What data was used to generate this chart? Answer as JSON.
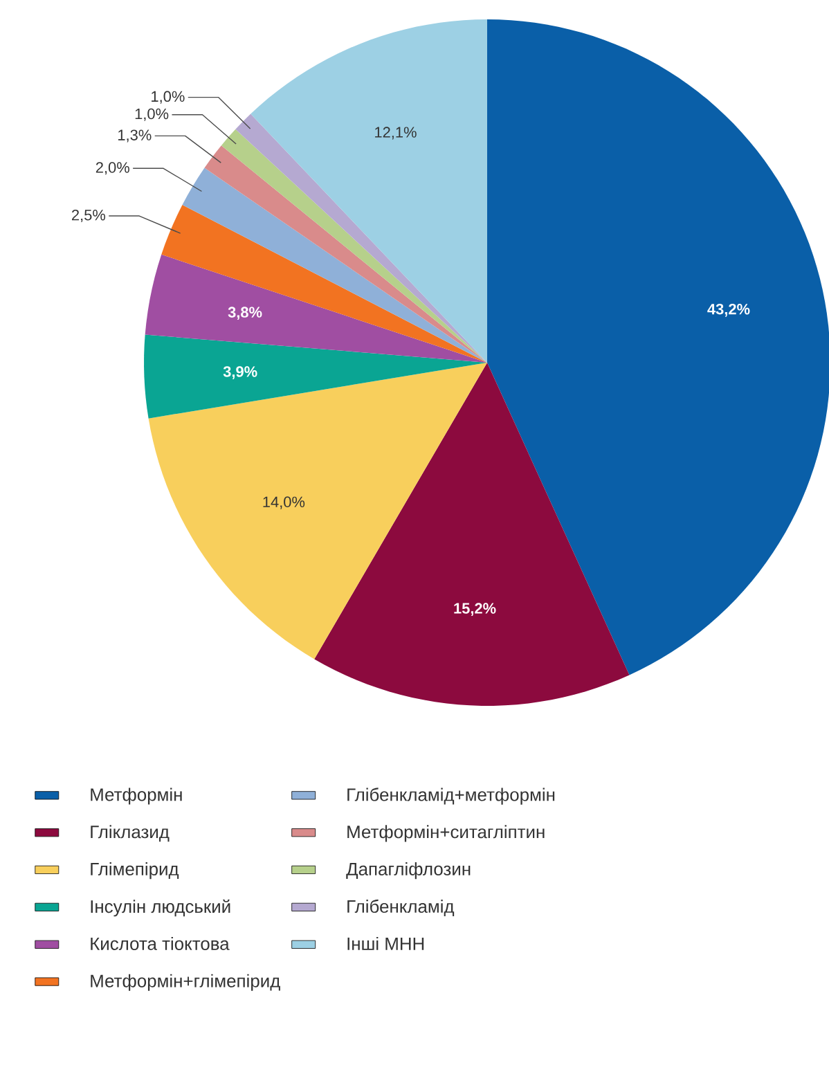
{
  "chart_data": {
    "type": "pie",
    "categories": [
      "Метформін",
      "Гліклазид",
      "Глімепірид",
      "Інсулін людський",
      "Кислота тіоктова",
      "Метформін+глімепірид",
      "Глібенкламід+метформін",
      "Метформін+ситагліптин",
      "Дапагліфлозин",
      "Глібенкламід",
      "Інші МНН"
    ],
    "values": [
      43.2,
      15.2,
      14.0,
      3.9,
      3.8,
      2.5,
      2.0,
      1.3,
      1.0,
      1.0,
      12.1
    ],
    "colors": [
      "#0a5fa8",
      "#8c0a3e",
      "#f8cf5c",
      "#0aa593",
      "#a04ea2",
      "#f27321",
      "#8fb0d8",
      "#d98b8b",
      "#b6d08b",
      "#b5a9d1",
      "#9dd0e4"
    ],
    "value_labels": [
      "43,2%",
      "15,2%",
      "14,0%",
      "3,9%",
      "3,8%",
      "2,5%",
      "2,0%",
      "1,3%",
      "1,0%",
      "1,0%",
      "12,1%"
    ],
    "legend": "bottom"
  }
}
